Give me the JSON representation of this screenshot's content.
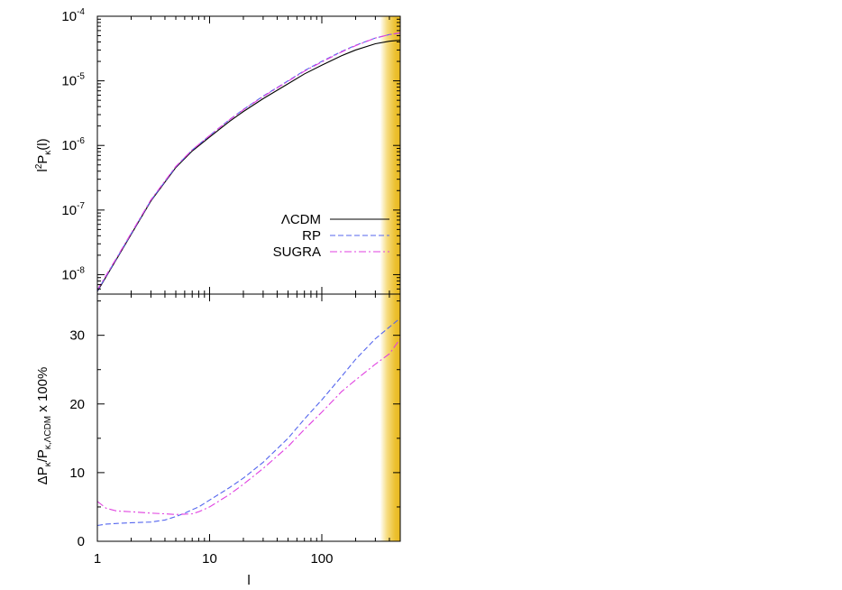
{
  "chart_data": [
    {
      "panel": "top",
      "type": "line",
      "xscale": "log",
      "yscale": "log",
      "xlim": [
        1,
        500
      ],
      "ylim": [
        5e-09,
        0.0001
      ],
      "xticks": [
        1,
        10,
        100
      ],
      "yticks": [
        {
          "value": 1e-08,
          "base": "10",
          "exp": "-8"
        },
        {
          "value": 1e-07,
          "base": "10",
          "exp": "-7"
        },
        {
          "value": 1e-06,
          "base": "10",
          "exp": "-6"
        },
        {
          "value": 1e-05,
          "base": "10",
          "exp": "-5"
        },
        {
          "value": 0.0001,
          "base": "10",
          "exp": "-4"
        }
      ],
      "ylabel": {
        "a": "l",
        "sup": "2",
        "b": "P",
        "sub": "κ",
        "c": "(l)"
      },
      "legend_position": "lower-right",
      "shaded_region": {
        "x": [
          330,
          500
        ],
        "color": "#e8b820"
      },
      "x": [
        1,
        1.5,
        2,
        3,
        5,
        7,
        10,
        15,
        20,
        30,
        50,
        70,
        100,
        150,
        200,
        300,
        400,
        500
      ],
      "series": [
        {
          "name": "ΛCDM",
          "color": "#000000",
          "dash": "",
          "values": [
            5.5e-09,
            1.8e-08,
            4.2e-08,
            1.38e-07,
            4.55e-07,
            8.2e-07,
            1.35e-06,
            2.35e-06,
            3.35e-06,
            5.3e-06,
            9e-06,
            1.28e-05,
            1.75e-05,
            2.45e-05,
            3e-05,
            3.75e-05,
            4.1e-05,
            4.25e-05
          ]
        },
        {
          "name": "RP",
          "color": "#5566ee",
          "dash": "6,3",
          "values": [
            5.6e-09,
            1.84e-08,
            4.3e-08,
            1.41e-07,
            4.68e-07,
            8.5e-07,
            1.42e-06,
            2.5e-06,
            3.6e-06,
            5.8e-06,
            1e-05,
            1.44e-05,
            2e-05,
            2.85e-05,
            3.55e-05,
            4.6e-05,
            5.2e-05,
            5.5e-05
          ]
        },
        {
          "name": "SUGRA",
          "color": "#e040e0",
          "dash": "8,3,2,3",
          "values": [
            5.8e-09,
            1.88e-08,
            4.38e-08,
            1.44e-07,
            4.74e-07,
            8.55e-07,
            1.42e-06,
            2.48e-06,
            3.56e-06,
            5.7e-06,
            9.85e-06,
            1.41e-05,
            1.96e-05,
            2.8e-05,
            3.5e-05,
            4.6e-05,
            5.2e-05,
            5.55e-05
          ]
        }
      ]
    },
    {
      "panel": "bottom",
      "type": "line",
      "xscale": "log",
      "yscale": "linear",
      "xlim": [
        1,
        500
      ],
      "ylim": [
        0,
        36
      ],
      "xticks": [
        1,
        10,
        100
      ],
      "yticks": [
        0,
        10,
        20,
        30
      ],
      "xlabel": "l",
      "ylabel": {
        "a": "ΔP",
        "sub1": "κ",
        "b": "/P",
        "sub2": "κ,ΛCDM",
        "c": " x 100%"
      },
      "shaded_region": {
        "x": [
          330,
          500
        ],
        "color": "#e8b820"
      },
      "x": [
        1,
        1.2,
        1.5,
        2,
        3,
        4,
        5,
        6,
        7,
        8,
        10,
        15,
        20,
        30,
        50,
        70,
        100,
        150,
        200,
        300,
        400,
        500
      ],
      "series": [
        {
          "name": "RP",
          "color": "#5566ee",
          "dash": "6,3",
          "values": [
            2.3,
            2.5,
            2.6,
            2.7,
            2.8,
            3.1,
            3.6,
            4.1,
            4.6,
            5.0,
            6.0,
            7.8,
            9.2,
            11.5,
            15.0,
            17.8,
            20.6,
            24.0,
            26.5,
            29.5,
            31.2,
            32.5
          ]
        },
        {
          "name": "SUGRA",
          "color": "#e040e0",
          "dash": "8,3,2,3",
          "values": [
            5.8,
            4.8,
            4.4,
            4.3,
            4.1,
            4.0,
            3.9,
            3.95,
            4.0,
            4.3,
            5.0,
            6.8,
            8.3,
            10.6,
            13.8,
            16.3,
            18.8,
            21.8,
            23.5,
            25.8,
            27.3,
            29.5
          ]
        }
      ]
    }
  ]
}
